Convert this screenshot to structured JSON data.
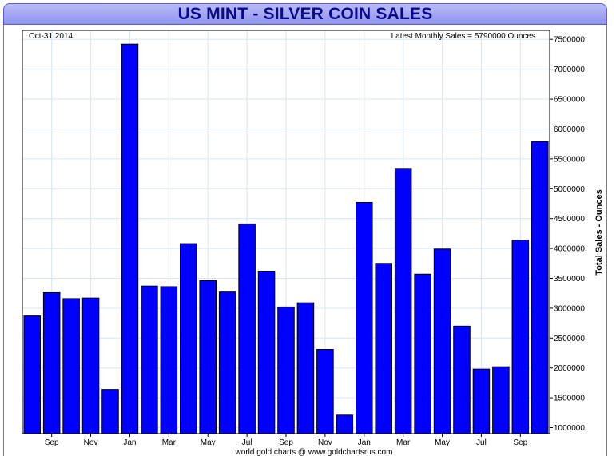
{
  "page": {
    "title": "US MINT - SILVER COIN SALES",
    "date_label": "Oct-31  2014",
    "latest_label": "Latest Monthly Sales = 5790000 Ounces",
    "footer": "world gold charts @ www.goldchartsrus.com"
  },
  "colors": {
    "bar_fill": "#0000ff",
    "bar_stroke": "#000000",
    "grid": "#d8e6f0",
    "title_text": "#0a0a8c"
  },
  "chart_data": {
    "type": "bar",
    "title": "US MINT - SILVER COIN SALES",
    "ylabel": "Total Sales - Ounces",
    "xlabel": "",
    "y_axis_side": "right",
    "ylim": [
      900000,
      7650000
    ],
    "yticks": [
      1000000,
      1500000,
      2000000,
      2500000,
      3000000,
      3500000,
      4000000,
      4500000,
      5000000,
      5500000,
      6000000,
      6500000,
      7000000,
      7500000
    ],
    "x_tick_labels": [
      {
        "index": 1,
        "label": "Sep"
      },
      {
        "index": 3,
        "label": "Nov"
      },
      {
        "index": 5,
        "label": "Jan"
      },
      {
        "index": 7,
        "label": "Mar"
      },
      {
        "index": 9,
        "label": "May"
      },
      {
        "index": 11,
        "label": "Jul"
      },
      {
        "index": 13,
        "label": "Sep"
      },
      {
        "index": 15,
        "label": "Nov"
      },
      {
        "index": 17,
        "label": "Jan"
      },
      {
        "index": 19,
        "label": "Mar"
      },
      {
        "index": 21,
        "label": "May"
      },
      {
        "index": 23,
        "label": "Jul"
      },
      {
        "index": 25,
        "label": "Sep"
      }
    ],
    "values": [
      2870000,
      3260000,
      3160000,
      3170000,
      1640000,
      7420000,
      3370000,
      3360000,
      4080000,
      3460000,
      3270000,
      4410000,
      3620000,
      3020000,
      3090000,
      2310000,
      1210000,
      4770000,
      3750000,
      5340000,
      3570000,
      3990000,
      2700000,
      1980000,
      2020000,
      4140000,
      5790000
    ],
    "grid": true,
    "legend": "none"
  }
}
